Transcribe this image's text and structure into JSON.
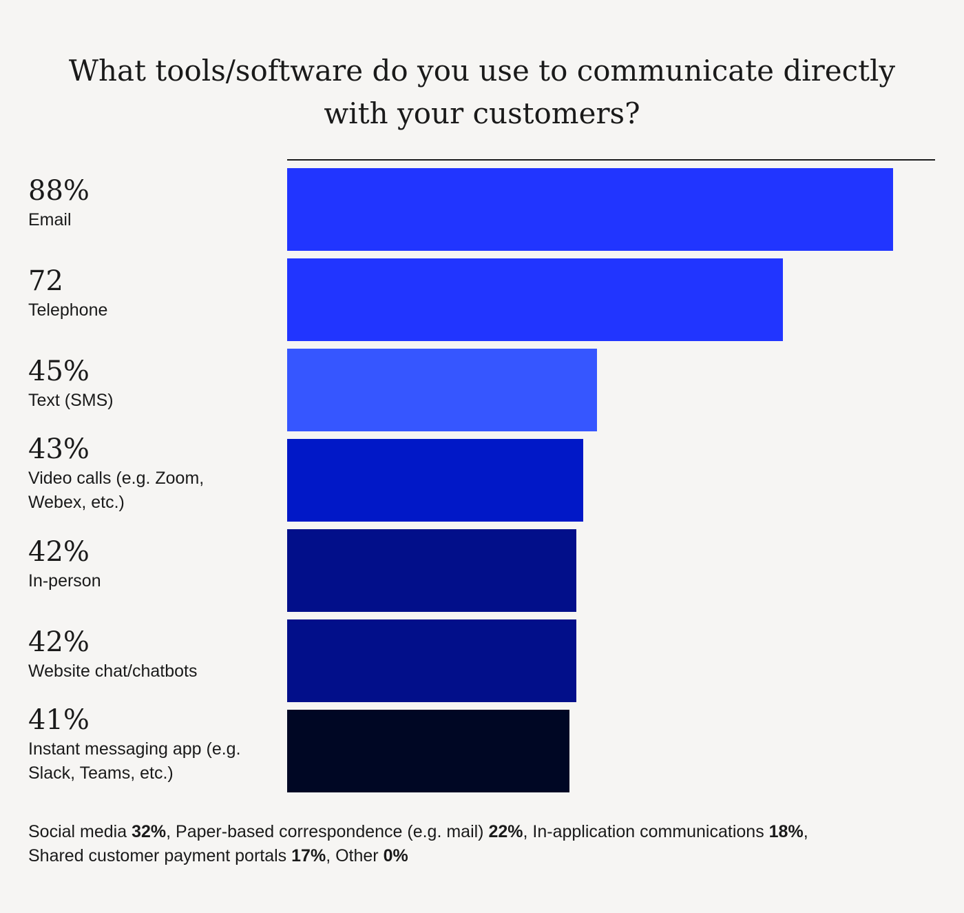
{
  "chart_data": {
    "type": "bar",
    "orientation": "horizontal",
    "title_lines": [
      "What tools/software do you use to communicate directly",
      "with your customers?"
    ],
    "categories": [
      "Email",
      "Telephone",
      "Text (SMS)",
      "Video calls (e.g. Zoom, Webex, etc.)",
      "In-person",
      "Website chat/chatbots",
      "Instant messaging app (e.g. Slack, Teams, etc.)"
    ],
    "category_lines": [
      [
        "Email"
      ],
      [
        "Telephone"
      ],
      [
        "Text (SMS)"
      ],
      [
        "Video calls (e.g. Zoom,",
        "Webex, etc.)"
      ],
      [
        "In-person"
      ],
      [
        "Website chat/chatbots"
      ],
      [
        "Instant messaging app (e.g.",
        "Slack, Teams, etc.)"
      ]
    ],
    "values": [
      88,
      72,
      45,
      43,
      42,
      42,
      41
    ],
    "value_labels": [
      "88%",
      "72",
      "45%",
      "43%",
      "42%",
      "42%",
      "41%"
    ],
    "bar_colors": [
      "#2135ff",
      "#2135ff",
      "#3656ff",
      "#0118c7",
      "#020f8a",
      "#020f8a",
      "#000724"
    ],
    "xlim": [
      0,
      100
    ],
    "grid": false,
    "legend": "none",
    "other_responses": [
      {
        "label": "Social media",
        "value": "32%"
      },
      {
        "label": "Paper-based correspondence (e.g. mail)",
        "value": "22%"
      },
      {
        "label": "In-application communications",
        "value": "18%"
      },
      {
        "label": "Shared customer payment portals",
        "value": "17%"
      },
      {
        "label": "Other",
        "value": "0%"
      }
    ]
  }
}
